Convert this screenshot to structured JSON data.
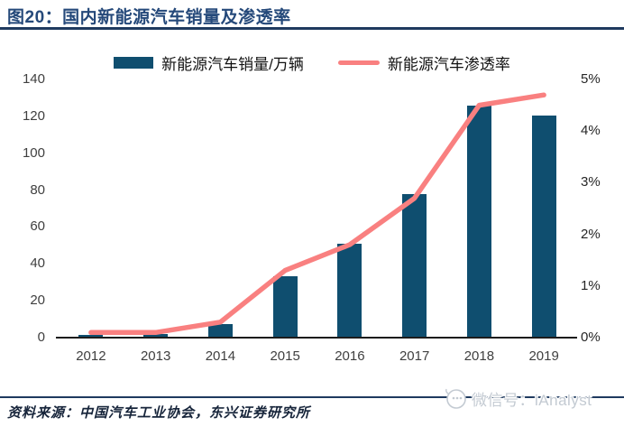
{
  "header": {
    "title": "图20：国内新能源汽车销量及渗透率"
  },
  "colors": {
    "navy_accent": "#25497A",
    "rule": "#1F3A5F",
    "bar": "#0F4E6F",
    "line": "#F98080",
    "axis_text": "#3f3f3f",
    "watermark": "#c3cad2"
  },
  "chart_data": {
    "type": "combo-bar-line",
    "title": "国内新能源汽车销量及渗透率",
    "categories": [
      "2012",
      "2013",
      "2014",
      "2015",
      "2016",
      "2017",
      "2018",
      "2019"
    ],
    "series": [
      {
        "name": "新能源汽车销量/万辆",
        "type": "bar",
        "axis": "left",
        "color": "#0F4E6F",
        "values": [
          1.3,
          1.8,
          7.5,
          33.1,
          50.7,
          77.7,
          125.6,
          120.6
        ]
      },
      {
        "name": "新能源汽车渗透率",
        "type": "line",
        "axis": "right",
        "color": "#F98080",
        "unit": "%",
        "values": [
          0.1,
          0.1,
          0.3,
          1.3,
          1.8,
          2.7,
          4.5,
          4.7
        ]
      }
    ],
    "left_axis": {
      "min": 0,
      "max": 140,
      "ticks": [
        "0",
        "20",
        "40",
        "60",
        "80",
        "100",
        "120",
        "140"
      ]
    },
    "right_axis": {
      "min": 0,
      "max": 5,
      "ticks": [
        "0%",
        "1%",
        "2%",
        "3%",
        "4%",
        "5%"
      ]
    },
    "grid": false,
    "legend_position": "top-center"
  },
  "footer": {
    "source": "资料来源：中国汽车工业协会，东兴证券研究所",
    "watermark": "微信号：iAnalyst"
  }
}
